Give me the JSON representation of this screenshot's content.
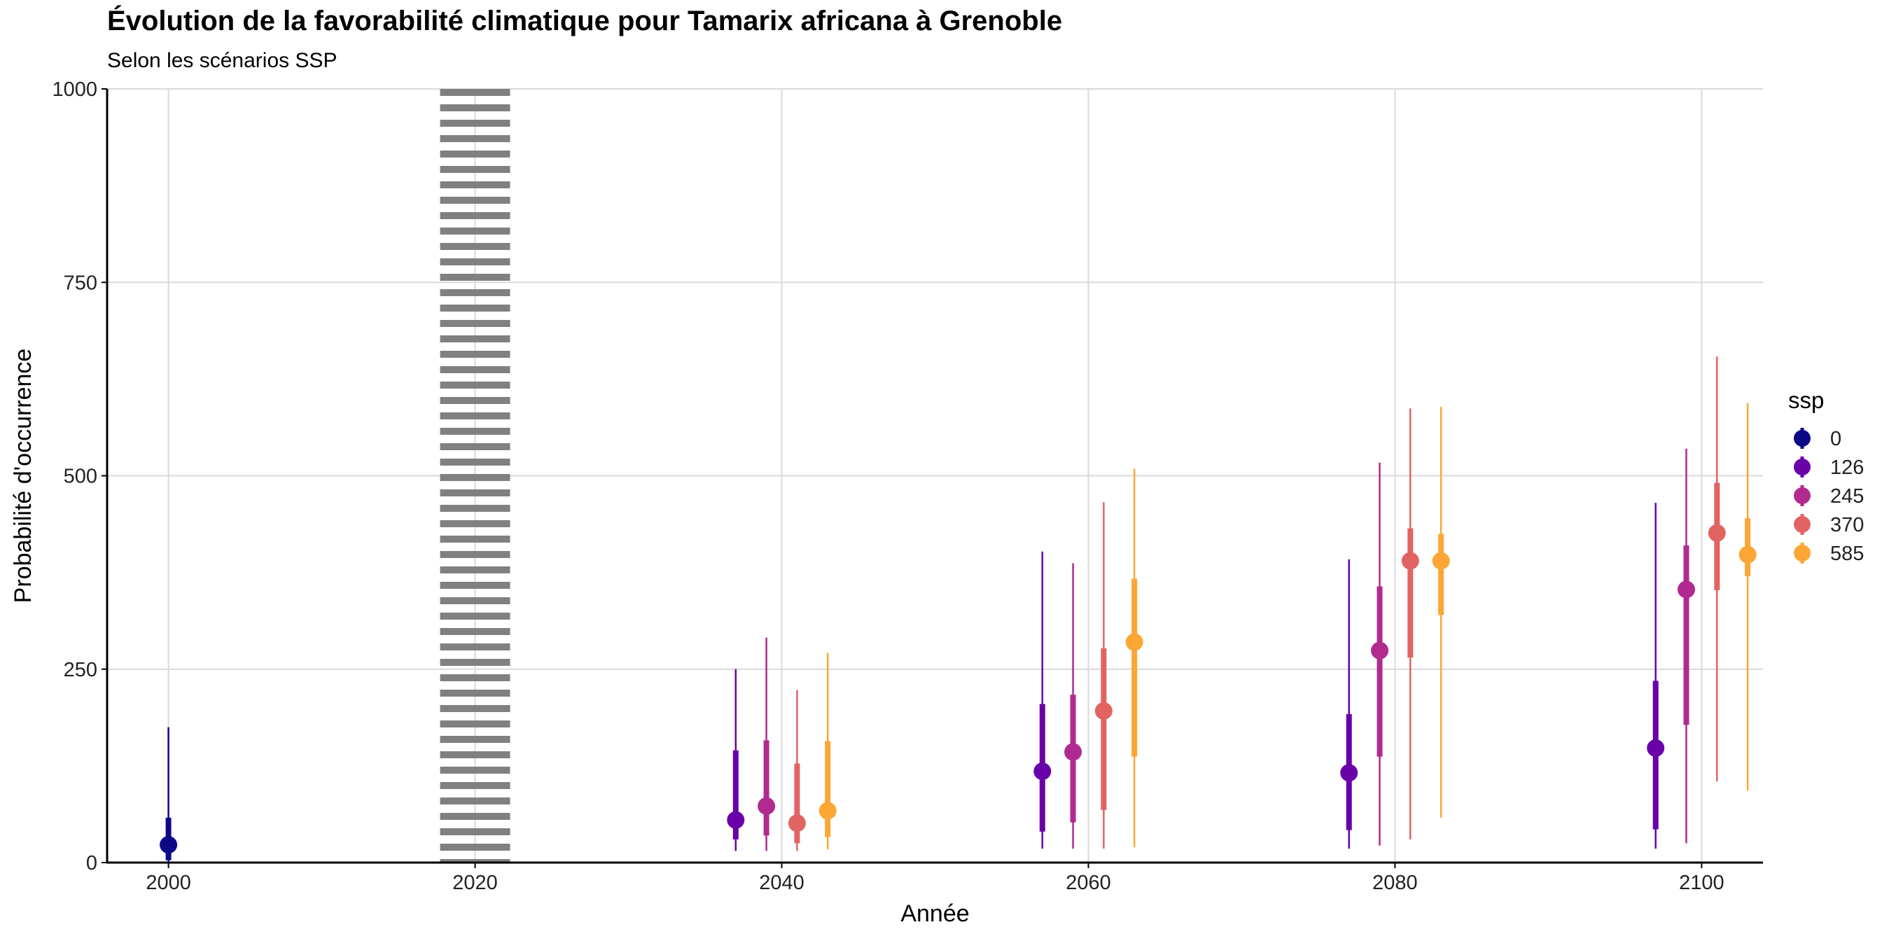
{
  "chart_data": {
    "type": "pointrange",
    "title": "Évolution de la favorabilité climatique pour Tamarix africana à Grenoble",
    "subtitle": "Selon les scénarios SSP",
    "xlabel": "Année",
    "ylabel": "Probabilité d'occurrence",
    "xlim": [
      1996,
      2104
    ],
    "ylim": [
      0,
      1000
    ],
    "x_ticks": [
      2000,
      2020,
      2040,
      2060,
      2080,
      2100
    ],
    "y_ticks": [
      0,
      250,
      500,
      750,
      1000
    ],
    "grid": true,
    "reference_line": {
      "x": 2020,
      "style": "dotted",
      "color": "#808080"
    },
    "legend": {
      "title": "ssp",
      "placement": "right"
    },
    "series": [
      {
        "name": "0",
        "color": "#0d0887",
        "points": [
          {
            "x": 2000,
            "y": 23,
            "inner": [
              3,
              58
            ],
            "outer": [
              0,
              175
            ]
          }
        ]
      },
      {
        "name": "126",
        "color": "#6a00a8",
        "points": [
          {
            "x": 2037,
            "y": 55,
            "inner": [
              30,
              145
            ],
            "outer": [
              15,
              250
            ]
          },
          {
            "x": 2057,
            "y": 118,
            "inner": [
              40,
              205
            ],
            "outer": [
              18,
              402
            ]
          },
          {
            "x": 2077,
            "y": 116,
            "inner": [
              42,
              192
            ],
            "outer": [
              18,
              392
            ]
          },
          {
            "x": 2097,
            "y": 148,
            "inner": [
              43,
              235
            ],
            "outer": [
              18,
              465
            ]
          }
        ]
      },
      {
        "name": "245",
        "color": "#b12a90",
        "points": [
          {
            "x": 2039,
            "y": 73,
            "inner": [
              35,
              158
            ],
            "outer": [
              15,
              291
            ]
          },
          {
            "x": 2059,
            "y": 143,
            "inner": [
              52,
              217
            ],
            "outer": [
              18,
              387
            ]
          },
          {
            "x": 2079,
            "y": 274,
            "inner": [
              137,
              357
            ],
            "outer": [
              22,
              517
            ]
          },
          {
            "x": 2099,
            "y": 353,
            "inner": [
              178,
              410
            ],
            "outer": [
              25,
              535
            ]
          }
        ]
      },
      {
        "name": "370",
        "color": "#e16462",
        "points": [
          {
            "x": 2041,
            "y": 51,
            "inner": [
              25,
              128
            ],
            "outer": [
              15,
              223
            ]
          },
          {
            "x": 2061,
            "y": 196,
            "inner": [
              68,
              277
            ],
            "outer": [
              18,
              466
            ]
          },
          {
            "x": 2081,
            "y": 390,
            "inner": [
              265,
              432
            ],
            "outer": [
              30,
              587
            ]
          },
          {
            "x": 2101,
            "y": 426,
            "inner": [
              352,
              491
            ],
            "outer": [
              105,
              654
            ]
          }
        ]
      },
      {
        "name": "585",
        "color": "#fca636",
        "points": [
          {
            "x": 2043,
            "y": 67,
            "inner": [
              33,
              157
            ],
            "outer": [
              17,
              271
            ]
          },
          {
            "x": 2063,
            "y": 285,
            "inner": [
              137,
              367
            ],
            "outer": [
              20,
              509
            ]
          },
          {
            "x": 2083,
            "y": 390,
            "inner": [
              320,
              425
            ],
            "outer": [
              58,
              589
            ]
          },
          {
            "x": 2103,
            "y": 398,
            "inner": [
              370,
              445
            ],
            "outer": [
              93,
              594
            ]
          }
        ]
      }
    ]
  }
}
